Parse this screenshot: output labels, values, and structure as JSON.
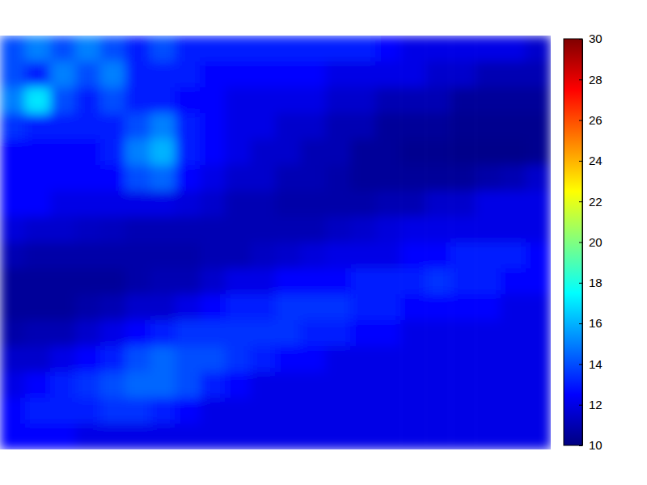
{
  "chart_data": {
    "type": "heatmap",
    "color": "jet",
    "color_range": [
      10,
      30
    ],
    "color_ticks": [
      10,
      12,
      14,
      16,
      18,
      20,
      22,
      24,
      26,
      28,
      30
    ],
    "values": [
      [
        14,
        15,
        14,
        15,
        14,
        13,
        14,
        13,
        13,
        13,
        13,
        13,
        13,
        13,
        13,
        12.5,
        12,
        12,
        12,
        12,
        12,
        11.5
      ],
      [
        14,
        13,
        15,
        14,
        15,
        13,
        13,
        13,
        12.5,
        12.5,
        12.5,
        12.5,
        12.5,
        12,
        12,
        12,
        12,
        11.5,
        11.5,
        11,
        11,
        11
      ],
      [
        15,
        17,
        14,
        13,
        14,
        13,
        13,
        12.5,
        12.5,
        12,
        12,
        12,
        12,
        11.5,
        11.5,
        11,
        11,
        11,
        10.5,
        10.5,
        10.5,
        10.5
      ],
      [
        13.5,
        13,
        13,
        13,
        13,
        14,
        15,
        13,
        12.5,
        12,
        12,
        11.5,
        11.5,
        11,
        11,
        10.5,
        10.5,
        10.5,
        10.3,
        10.3,
        10.3,
        10.3
      ],
      [
        12.5,
        12.5,
        12.5,
        12.5,
        13,
        15,
        16,
        13,
        12.5,
        12,
        11.5,
        11.5,
        11,
        11,
        10.5,
        10.5,
        10.3,
        10.3,
        10.2,
        10.2,
        10.2,
        10.3
      ],
      [
        12.5,
        12.5,
        12.5,
        12.5,
        12.5,
        14,
        14.5,
        12.5,
        12,
        11.5,
        11.5,
        11,
        11,
        10.8,
        10.5,
        10.5,
        10.5,
        10.5,
        10.5,
        10.8,
        11,
        11.5
      ],
      [
        12.5,
        12.5,
        12,
        12,
        12,
        12,
        12,
        11.8,
        11.5,
        11,
        11,
        10.8,
        10.8,
        10.8,
        10.8,
        11,
        11,
        11.5,
        11.5,
        12,
        12,
        12
      ],
      [
        11.8,
        11.5,
        11.5,
        11.3,
        11.2,
        11,
        11,
        11,
        11,
        11,
        11,
        11,
        11,
        11.3,
        11.5,
        11.8,
        12,
        12,
        12,
        12,
        12,
        12
      ],
      [
        11,
        10.8,
        10.8,
        10.8,
        10.8,
        10.8,
        10.8,
        10.8,
        11,
        11,
        11.3,
        11.5,
        11.8,
        12,
        12,
        12,
        12.5,
        12.5,
        13,
        13,
        13,
        12.5
      ],
      [
        10.5,
        10.5,
        10.5,
        10.5,
        10.5,
        10.8,
        11,
        11,
        11.5,
        12,
        12,
        12.5,
        12.5,
        12.5,
        13,
        13,
        13,
        13.5,
        13,
        13,
        12.5,
        12.5
      ],
      [
        10.5,
        10.5,
        10.5,
        10.8,
        11,
        11.5,
        11.5,
        12,
        12.5,
        13,
        13,
        13.5,
        13.5,
        13.5,
        13,
        13,
        12.5,
        12.5,
        12.5,
        12.5,
        12,
        12
      ],
      [
        10.8,
        11,
        11,
        11.5,
        12,
        12.5,
        13,
        13.5,
        13.5,
        13.5,
        13.5,
        13.5,
        13,
        13,
        12.5,
        12.5,
        12,
        12,
        12,
        12,
        12,
        12
      ],
      [
        11.5,
        11.5,
        12,
        12.5,
        13,
        14,
        14.5,
        14,
        14,
        13.5,
        13,
        12.5,
        12.5,
        12,
        12,
        12,
        12,
        12,
        12,
        12,
        12,
        12
      ],
      [
        12,
        12.5,
        13,
        13.5,
        14,
        14.5,
        14.5,
        14,
        13,
        12.5,
        12,
        12,
        12,
        12,
        12,
        12,
        12,
        12,
        12,
        12,
        12,
        12
      ],
      [
        12.5,
        13,
        13,
        13,
        13.5,
        13.5,
        13,
        12.5,
        12,
        12,
        12,
        12,
        12,
        12,
        12,
        12,
        12,
        12,
        12,
        12,
        12,
        12
      ],
      [
        12.5,
        12.5,
        12.5,
        12,
        12,
        12,
        12,
        12,
        12,
        12,
        12,
        12,
        12,
        12,
        12,
        12,
        12,
        12,
        12,
        12,
        12,
        12
      ]
    ]
  }
}
